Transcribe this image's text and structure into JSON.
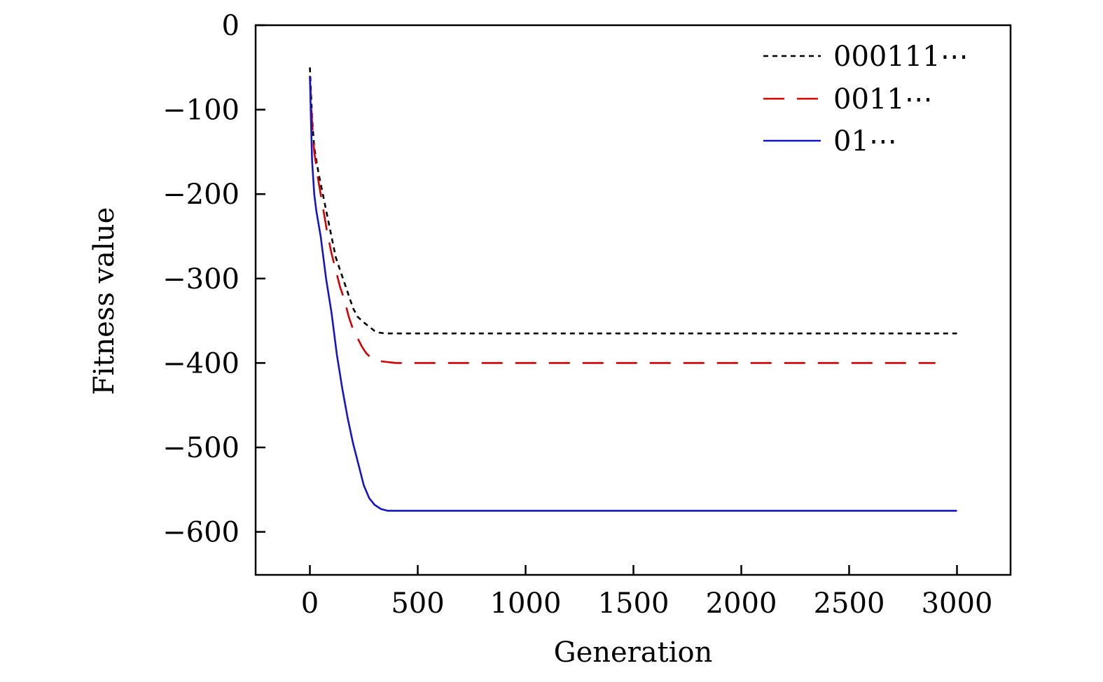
{
  "chart_data": {
    "type": "line",
    "xlabel": "Generation",
    "ylabel": "Fitness value",
    "xlim": [
      -250,
      3250
    ],
    "ylim": [
      -650,
      0
    ],
    "xticks": [
      0,
      500,
      1000,
      1500,
      2000,
      2500,
      3000
    ],
    "xtick_labels": [
      "0",
      "500",
      "1000",
      "1500",
      "2000",
      "2500",
      "3000"
    ],
    "yticks": [
      0,
      -100,
      -200,
      -300,
      -400,
      -500,
      -600
    ],
    "ytick_labels": [
      "0",
      "−100",
      "−200",
      "−300",
      "−400",
      "−500",
      "−600"
    ],
    "grid": false,
    "legend_position": "top-right",
    "series": [
      {
        "name": "000111⋯",
        "color": "#000000",
        "style": "dotted",
        "x": [
          0,
          10,
          20,
          40,
          60,
          80,
          100,
          120,
          140,
          160,
          180,
          200,
          220,
          250,
          280,
          300,
          320,
          350,
          400,
          3000
        ],
        "y": [
          -50,
          -110,
          -145,
          -175,
          -200,
          -225,
          -250,
          -275,
          -290,
          -305,
          -320,
          -335,
          -345,
          -352,
          -358,
          -362,
          -364,
          -365,
          -365,
          -365
        ]
      },
      {
        "name": "0011⋯",
        "color": "#d40000",
        "style": "dashed",
        "x": [
          0,
          10,
          20,
          40,
          60,
          80,
          100,
          120,
          140,
          160,
          180,
          200,
          220,
          240,
          260,
          280,
          300,
          330,
          400,
          2900
        ],
        "y": [
          -60,
          -115,
          -150,
          -185,
          -215,
          -245,
          -270,
          -290,
          -310,
          -325,
          -345,
          -360,
          -370,
          -380,
          -388,
          -393,
          -396,
          -398,
          -400,
          -400
        ]
      },
      {
        "name": "01⋯",
        "color": "#1515c8",
        "style": "solid",
        "x": [
          0,
          5,
          10,
          20,
          30,
          50,
          75,
          100,
          125,
          150,
          175,
          200,
          225,
          250,
          275,
          300,
          330,
          360,
          3000
        ],
        "y": [
          -60,
          -110,
          -160,
          -200,
          -220,
          -250,
          -300,
          -340,
          -390,
          -430,
          -465,
          -495,
          -520,
          -545,
          -560,
          -568,
          -573,
          -575,
          -575
        ]
      }
    ]
  }
}
